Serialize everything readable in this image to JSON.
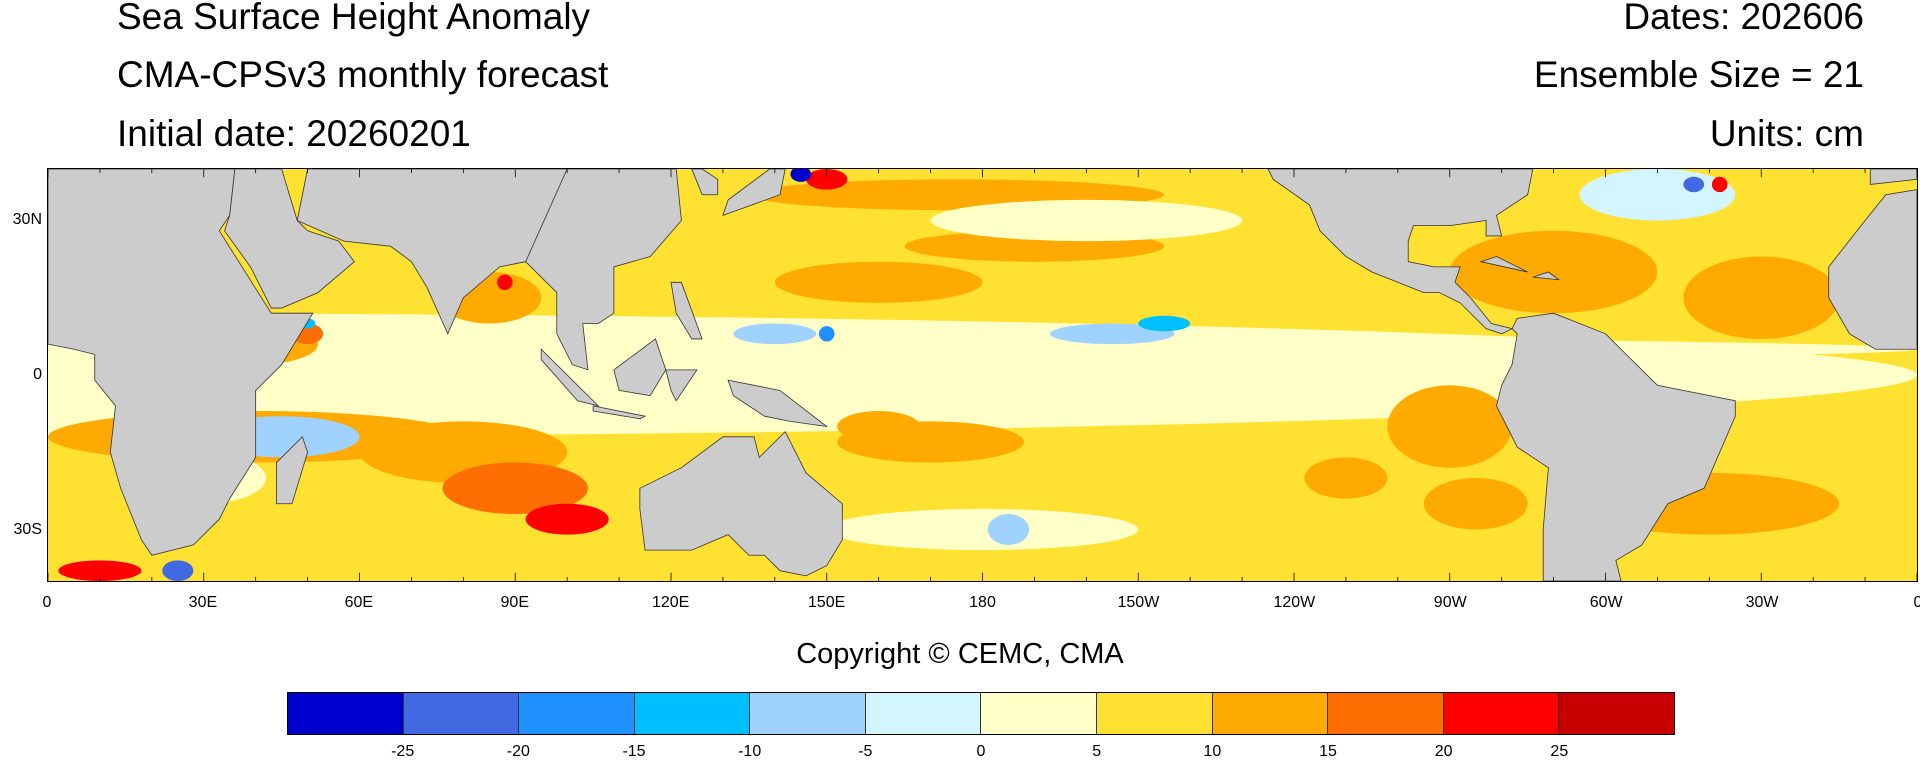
{
  "title": {
    "left": [
      "Sea Surface Height Anomaly",
      "CMA-CPSv3 monthly forecast",
      "Initial date: 20260201"
    ],
    "right": [
      "Dates: 202606",
      "Ensemble Size = 21",
      "Units: cm"
    ]
  },
  "copyright": "Copyright © CEMC, CMA",
  "chart_data": {
    "type": "heatmap",
    "title": "Sea Surface Height Anomaly",
    "units": "cm",
    "x_ticks": [
      "0",
      "30E",
      "60E",
      "90E",
      "120E",
      "150E",
      "180",
      "150W",
      "120W",
      "90W",
      "60W",
      "30W",
      "0"
    ],
    "y_ticks": [
      "30N",
      "0",
      "30S"
    ],
    "xlim": [
      0,
      360
    ],
    "ylim": [
      -40,
      40
    ],
    "colorbar": {
      "levels": [
        "-25",
        "-20",
        "-15",
        "-10",
        "-5",
        "0",
        "5",
        "10",
        "15",
        "20",
        "25"
      ],
      "colors": [
        "#0000CD",
        "#4169E1",
        "#1E90FF",
        "#00BFFF",
        "#A0D2FF",
        "#D2F5FF",
        "#FFFFC8",
        "#FFE132",
        "#FFAA00",
        "#FF6E00",
        "#FF0000",
        "#C80000"
      ]
    },
    "land_color": "#CCCCCC"
  }
}
